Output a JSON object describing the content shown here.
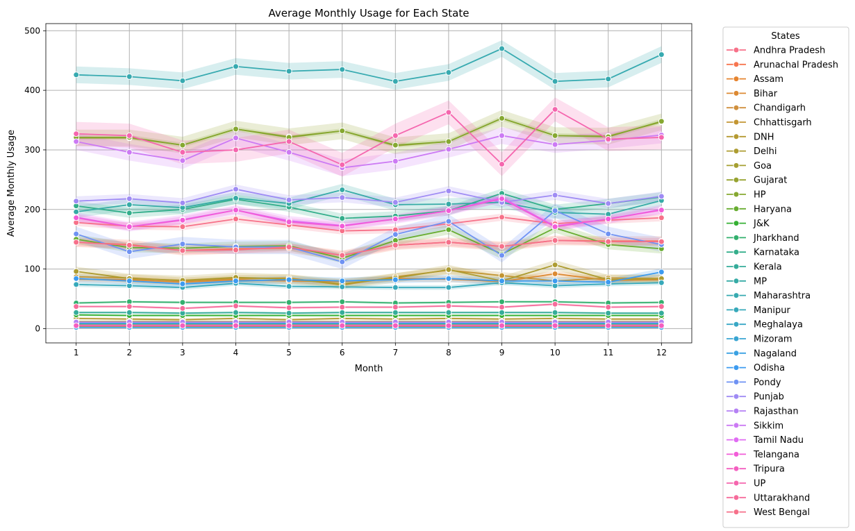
{
  "chart_data": {
    "type": "line",
    "title": "Average Monthly Usage for Each State",
    "xlabel": "Month",
    "ylabel": "Average Monthly Usage",
    "x": [
      1,
      2,
      3,
      4,
      5,
      6,
      7,
      8,
      9,
      10,
      11,
      12
    ],
    "xlim": [
      0.43,
      12.57
    ],
    "ylim": [
      -24,
      512
    ],
    "yticks": [
      0,
      100,
      200,
      300,
      400,
      500
    ],
    "grid": true,
    "legend": {
      "title": "States",
      "placement": "outside-right"
    },
    "series": [
      {
        "name": "Andhra Pradesh",
        "color": "#f77189",
        "values": [
          178,
          172,
          171,
          184,
          174,
          164,
          166,
          176,
          187,
          176,
          182,
          186
        ],
        "band": 6
      },
      {
        "name": "Arunachal Pradesh",
        "color": "#f7754f",
        "values": [
          145,
          141,
          131,
          134,
          135,
          123,
          140,
          145,
          138,
          148,
          147,
          147
        ],
        "band": 8
      },
      {
        "name": "Assam",
        "color": "#e6842f",
        "values": [
          3,
          3,
          3,
          3,
          3,
          3,
          3,
          3,
          3,
          3,
          3,
          3
        ],
        "band": 1
      },
      {
        "name": "Bihar",
        "color": "#dc8932",
        "values": [
          83,
          82,
          78,
          82,
          80,
          79,
          84,
          83,
          79,
          92,
          81,
          82
        ],
        "band": 5
      },
      {
        "name": "Chandigarh",
        "color": "#d0903e",
        "values": [
          6,
          6,
          6,
          6,
          6,
          6,
          6,
          6,
          6,
          6,
          6,
          6
        ],
        "band": 1
      },
      {
        "name": "Chhattisgarh",
        "color": "#c39532",
        "values": [
          87,
          85,
          80,
          84,
          85,
          73,
          87,
          98,
          89,
          80,
          85,
          84
        ],
        "band": 6
      },
      {
        "name": "DNH",
        "color": "#b59a32",
        "values": [
          17,
          16,
          15,
          17,
          15,
          17,
          16,
          17,
          16,
          17,
          16,
          16
        ],
        "band": 2
      },
      {
        "name": "Delhi",
        "color": "#ad9c31",
        "values": [
          96,
          84,
          81,
          86,
          83,
          75,
          85,
          99,
          80,
          107,
          82,
          84
        ],
        "band": 8
      },
      {
        "name": "Goa",
        "color": "#a59f31",
        "values": [
          12,
          12,
          12,
          12,
          12,
          12,
          12,
          12,
          12,
          12,
          12,
          12
        ],
        "band": 1
      },
      {
        "name": "Gujarat",
        "color": "#97a331",
        "values": [
          320,
          320,
          308,
          335,
          322,
          332,
          307,
          314,
          353,
          324,
          323,
          347
        ],
        "band": 14
      },
      {
        "name": "HP",
        "color": "#86a831",
        "values": [
          321,
          321,
          308,
          335,
          321,
          332,
          308,
          314,
          353,
          324,
          322,
          348
        ],
        "band": 4
      },
      {
        "name": "Haryana",
        "color": "#68ad31",
        "values": [
          150,
          136,
          135,
          138,
          139,
          118,
          148,
          166,
          125,
          169,
          141,
          134
        ],
        "band": 8
      },
      {
        "name": "J&K",
        "color": "#35b033",
        "values": [
          23,
          22,
          22,
          22,
          22,
          22,
          22,
          22,
          22,
          22,
          22,
          22
        ],
        "band": 2
      },
      {
        "name": "Jharkhand",
        "color": "#33b06e",
        "values": [
          43,
          45,
          44,
          44,
          44,
          45,
          43,
          44,
          45,
          45,
          43,
          44
        ],
        "band": 2
      },
      {
        "name": "Karnataka",
        "color": "#34ae8b",
        "values": [
          206,
          194,
          200,
          217,
          204,
          185,
          189,
          198,
          227,
          200,
          210,
          221
        ],
        "band": 8
      },
      {
        "name": "Kerala",
        "color": "#35ac9a",
        "values": [
          27,
          27,
          26,
          27,
          26,
          27,
          27,
          27,
          27,
          27,
          26,
          26
        ],
        "band": 2
      },
      {
        "name": "MP",
        "color": "#36aba6",
        "values": [
          196,
          208,
          203,
          219,
          210,
          233,
          208,
          209,
          212,
          195,
          192,
          215
        ],
        "band": 10
      },
      {
        "name": "Maharashtra",
        "color": "#37aab0",
        "values": [
          426,
          423,
          416,
          440,
          432,
          435,
          415,
          430,
          470,
          415,
          419,
          460
        ],
        "band": 14
      },
      {
        "name": "Manipur",
        "color": "#37a9ba",
        "values": [
          74,
          72,
          69,
          76,
          71,
          70,
          69,
          69,
          77,
          72,
          75,
          77
        ],
        "band": 4
      },
      {
        "name": "Meghalaya",
        "color": "#38a7c5",
        "values": [
          9,
          9,
          9,
          9,
          9,
          9,
          9,
          9,
          9,
          9,
          9,
          9
        ],
        "band": 1
      },
      {
        "name": "Mizoram",
        "color": "#39a5d2",
        "values": [
          8,
          8,
          8,
          8,
          8,
          8,
          8,
          8,
          8,
          8,
          8,
          8
        ],
        "band": 1
      },
      {
        "name": "Nagaland",
        "color": "#3aa1e2",
        "values": [
          2,
          2,
          2,
          2,
          2,
          2,
          2,
          2,
          2,
          2,
          2,
          2
        ],
        "band": 1
      },
      {
        "name": "Odisha",
        "color": "#3d9bf0",
        "values": [
          84,
          80,
          75,
          80,
          82,
          80,
          82,
          84,
          80,
          80,
          78,
          95
        ],
        "band": 6
      },
      {
        "name": "Pondy",
        "color": "#6f92f3",
        "values": [
          159,
          129,
          142,
          137,
          137,
          112,
          158,
          180,
          123,
          198,
          159,
          141
        ],
        "band": 12
      },
      {
        "name": "Punjab",
        "color": "#9f8bf4",
        "values": [
          214,
          218,
          211,
          234,
          216,
          220,
          212,
          231,
          212,
          224,
          210,
          222
        ],
        "band": 8
      },
      {
        "name": "Rajasthan",
        "color": "#b581f4",
        "values": [
          11,
          11,
          11,
          11,
          11,
          11,
          11,
          11,
          11,
          11,
          11,
          11
        ],
        "band": 1
      },
      {
        "name": "Sikkim",
        "color": "#cc7af4",
        "values": [
          314,
          296,
          282,
          320,
          296,
          270,
          281,
          301,
          324,
          309,
          316,
          325
        ],
        "band": 14
      },
      {
        "name": "Tamil Nadu",
        "color": "#e06cf3",
        "values": [
          187,
          171,
          183,
          199,
          181,
          173,
          184,
          198,
          220,
          172,
          184,
          200
        ],
        "band": 8
      },
      {
        "name": "Telangana",
        "color": "#f25cd8",
        "values": [
          186,
          171,
          182,
          199,
          179,
          172,
          184,
          198,
          218,
          171,
          184,
          199
        ],
        "band": 6
      },
      {
        "name": "Tripura",
        "color": "#f45fc0",
        "values": [
          5,
          5,
          5,
          5,
          5,
          5,
          5,
          5,
          5,
          5,
          5,
          5
        ],
        "band": 1
      },
      {
        "name": "UP",
        "color": "#f566ae",
        "values": [
          327,
          324,
          296,
          300,
          314,
          275,
          324,
          363,
          276,
          368,
          318,
          321
        ],
        "band": 20
      },
      {
        "name": "Uttarakhand",
        "color": "#f66c9b",
        "values": [
          37,
          37,
          34,
          38,
          35,
          36,
          36,
          38,
          36,
          41,
          36,
          37
        ],
        "band": 2
      },
      {
        "name": "West Bengal",
        "color": "#f6708a",
        "values": [
          145,
          140,
          131,
          132,
          137,
          123,
          140,
          145,
          138,
          148,
          146,
          146
        ],
        "band": 6
      }
    ]
  }
}
